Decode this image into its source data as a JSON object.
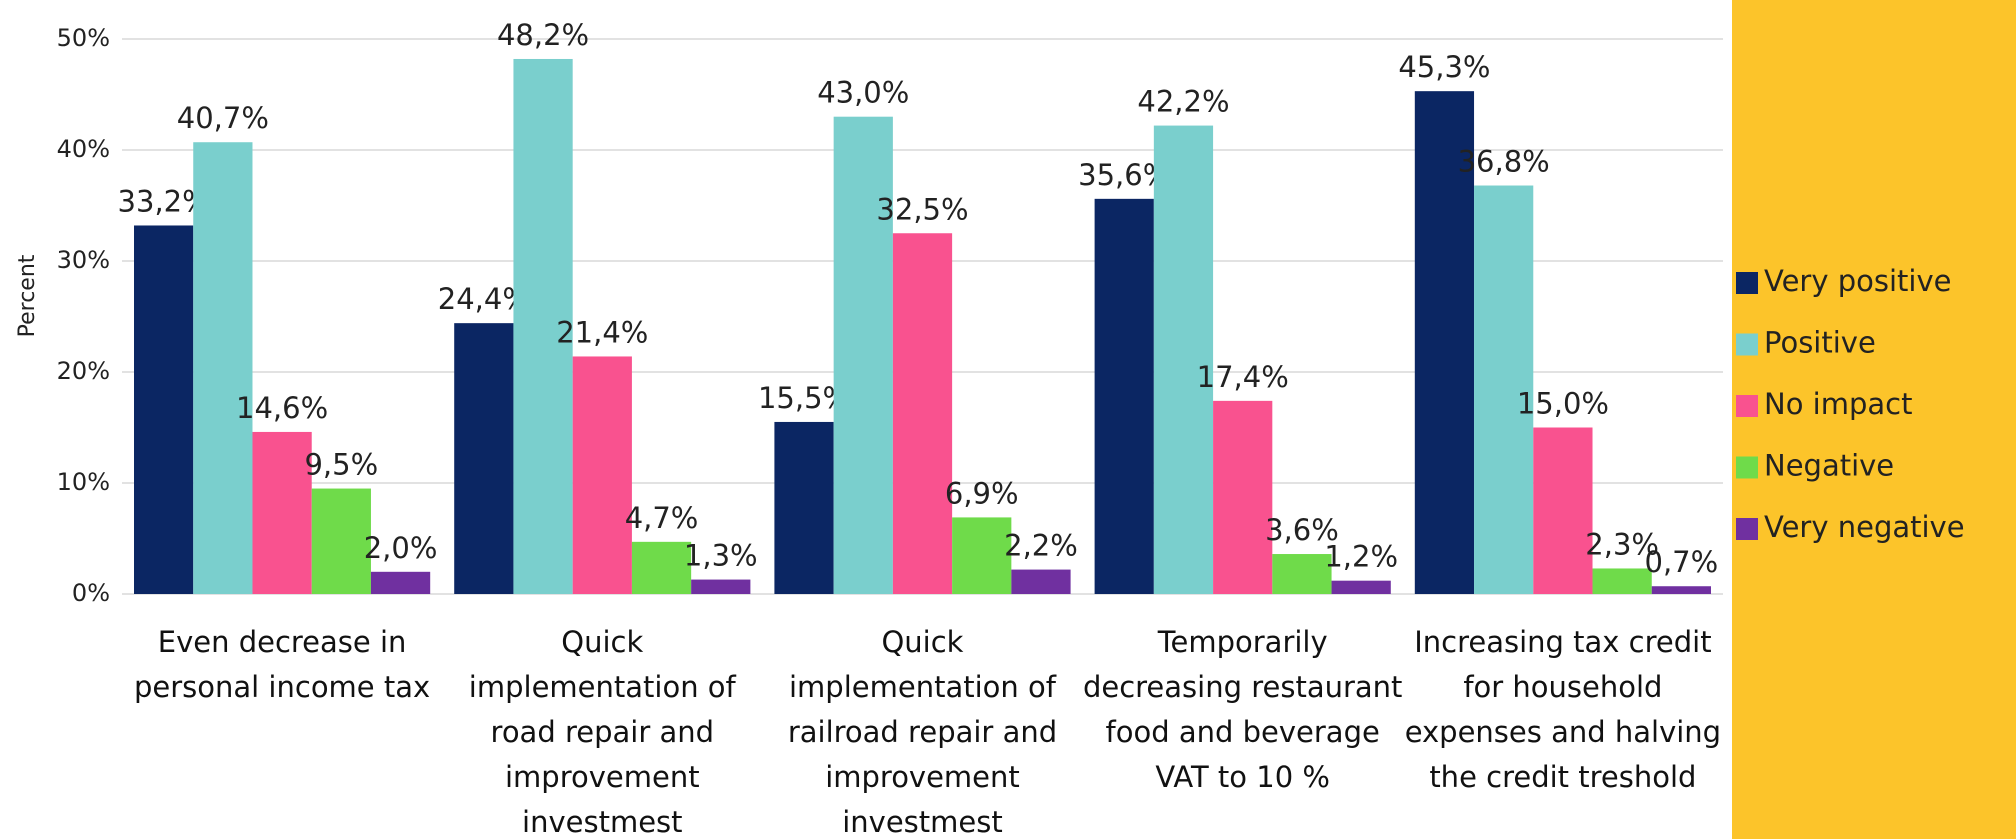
{
  "chart_data": {
    "type": "bar",
    "y_label": "Percent",
    "categories": [
      "Even decrease in personal income tax",
      "Quick implementation of road repair and improvement investmest",
      "Quick implementation of railroad repair and improvement investmest",
      "Temporarily decreasing restaurant food and beverage VAT to 10 %",
      "Increasing tax credit for household expenses and halving the credit treshold"
    ],
    "series": [
      {
        "name": "Very positive",
        "color": "#0b2663",
        "values": [
          33.2,
          24.4,
          15.5,
          35.6,
          45.3
        ],
        "value_labels": [
          "33,2%",
          "24,4%",
          "15,5%",
          "35,6%",
          "45,3%"
        ]
      },
      {
        "name": "Positive",
        "color": "#7acfcd",
        "values": [
          40.7,
          48.2,
          43.0,
          42.2,
          36.8
        ],
        "value_labels": [
          "40,7%",
          "48,2%",
          "43,0%",
          "42,2%",
          "36,8%"
        ]
      },
      {
        "name": "No impact",
        "color": "#f9528f",
        "values": [
          14.6,
          21.4,
          32.5,
          17.4,
          15.0
        ],
        "value_labels": [
          "14,6%",
          "21,4%",
          "32,5%",
          "17,4%",
          "15,0%"
        ]
      },
      {
        "name": "Negative",
        "color": "#6fdb4a",
        "values": [
          9.5,
          4.7,
          6.9,
          3.6,
          2.3
        ],
        "value_labels": [
          "9,5%",
          "4,7%",
          "6,9%",
          "3,6%",
          "2,3%"
        ]
      },
      {
        "name": "Very negative",
        "color": "#7030a0",
        "values": [
          2.0,
          1.3,
          2.2,
          1.2,
          0.7
        ],
        "value_labels": [
          "2,0%",
          "1,3%",
          "2,2%",
          "1,2%",
          "0,7%"
        ]
      }
    ],
    "ylim": [
      0,
      50
    ],
    "yticks": [
      {
        "value": 0,
        "label": "0%"
      },
      {
        "value": 10,
        "label": "10%"
      },
      {
        "value": 20,
        "label": "20%"
      },
      {
        "value": 30,
        "label": "30%"
      },
      {
        "value": 40,
        "label": "40%"
      },
      {
        "value": 50,
        "label": "50%"
      }
    ],
    "grid": true,
    "legend": "right",
    "legend_background": "#fcc42a"
  }
}
